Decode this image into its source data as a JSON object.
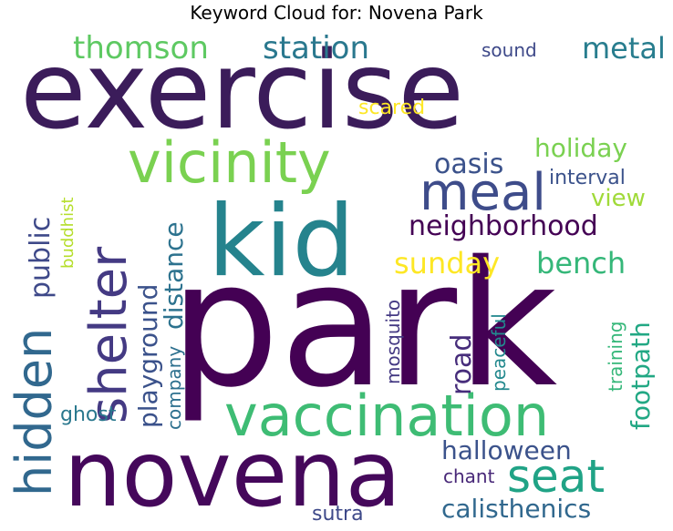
{
  "title": "Keyword Cloud for: Novena Park",
  "words": [
    {
      "text": "park",
      "color": "#440154"
    },
    {
      "text": "exercise",
      "color": "#3b1c5a"
    },
    {
      "text": "novena",
      "color": "#45085b"
    },
    {
      "text": "kid",
      "color": "#25838d"
    },
    {
      "text": "vaccination",
      "color": "#3ebc74"
    },
    {
      "text": "vicinity",
      "color": "#7ad151"
    },
    {
      "text": "hidden",
      "color": "#31688e"
    },
    {
      "text": "shelter",
      "color": "#443a83"
    },
    {
      "text": "meal",
      "color": "#3e4c8a"
    },
    {
      "text": "seat",
      "color": "#20a386"
    },
    {
      "text": "thomson",
      "color": "#5ec962"
    },
    {
      "text": "station",
      "color": "#2a788e"
    },
    {
      "text": "metal",
      "color": "#287d8e"
    },
    {
      "text": "neighborhood",
      "color": "#440154"
    },
    {
      "text": "sunday",
      "color": "#fde725"
    },
    {
      "text": "bench",
      "color": "#35b779"
    },
    {
      "text": "oasis",
      "color": "#3b528b"
    },
    {
      "text": "holiday",
      "color": "#7ad151"
    },
    {
      "text": "view",
      "color": "#a0da39"
    },
    {
      "text": "interval",
      "color": "#3b528b"
    },
    {
      "text": "public",
      "color": "#3e4989"
    },
    {
      "text": "distance",
      "color": "#2c728e"
    },
    {
      "text": "playground",
      "color": "#3b528b"
    },
    {
      "text": "footpath",
      "color": "#22a884"
    },
    {
      "text": "road",
      "color": "#472d7b"
    },
    {
      "text": "halloween",
      "color": "#3b528b"
    },
    {
      "text": "calisthenics",
      "color": "#31688e"
    },
    {
      "text": "chant",
      "color": "#482878"
    },
    {
      "text": "sutra",
      "color": "#3e4989"
    },
    {
      "text": "company",
      "color": "#2d708e"
    },
    {
      "text": "ghost",
      "color": "#2a788e"
    },
    {
      "text": "buddhist",
      "color": "#b5de2b"
    },
    {
      "text": "mosquito",
      "color": "#443983"
    },
    {
      "text": "peaceful",
      "color": "#23898e"
    },
    {
      "text": "training",
      "color": "#35b779"
    },
    {
      "text": "sound",
      "color": "#3e4989"
    },
    {
      "text": "scared",
      "color": "#fde725"
    }
  ]
}
